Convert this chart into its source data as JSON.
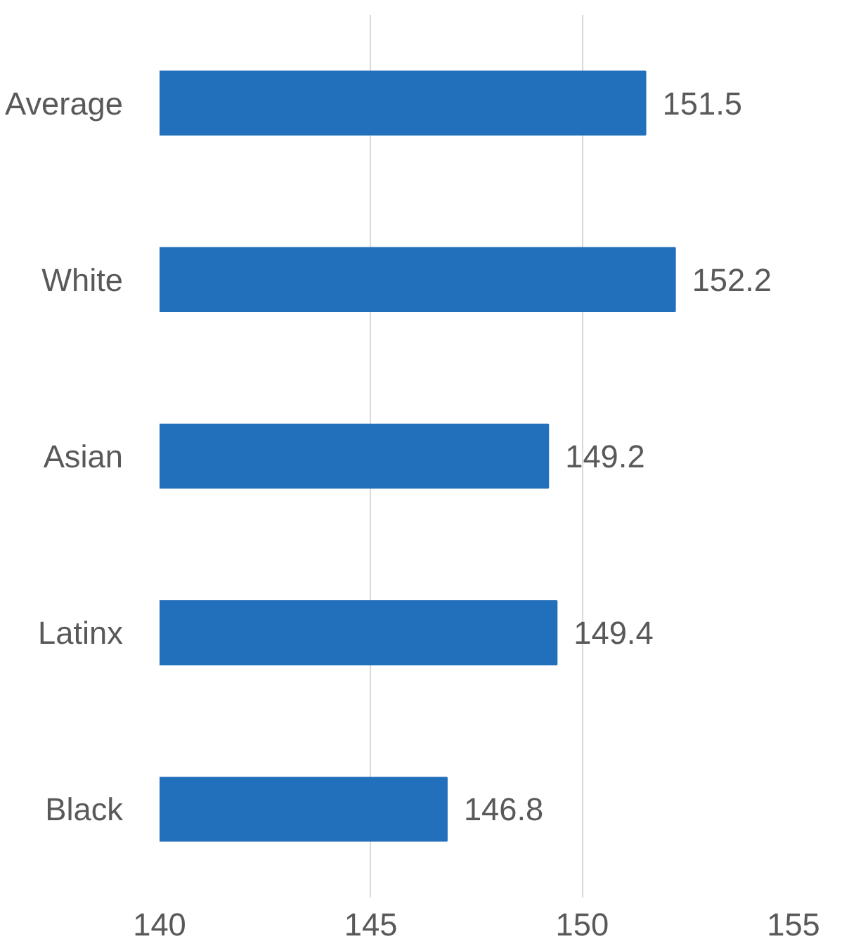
{
  "chart_data": {
    "type": "bar",
    "orientation": "horizontal",
    "categories": [
      "Average",
      "White",
      "Asian",
      "Latinx",
      "Black"
    ],
    "values": [
      151.5,
      152.2,
      149.2,
      149.4,
      146.8
    ],
    "color": "#226fbb",
    "xlim": [
      140,
      155
    ],
    "xticks": [
      140,
      145,
      150,
      155
    ],
    "grid": "x",
    "data_labels": true
  }
}
